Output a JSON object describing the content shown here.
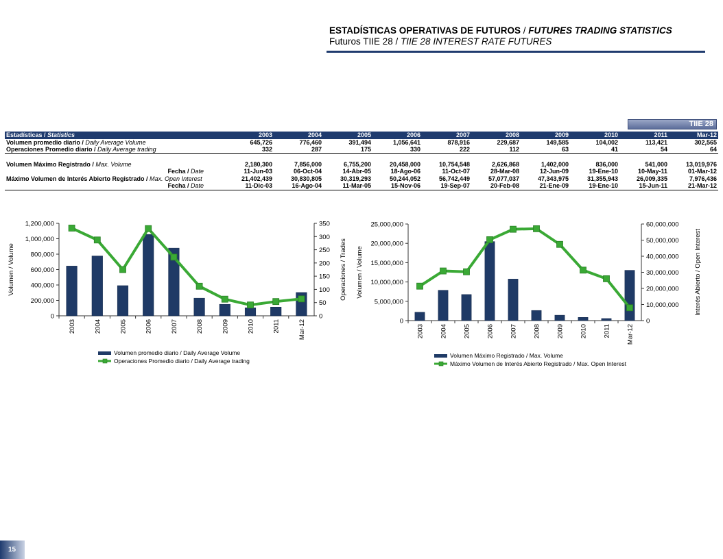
{
  "header": {
    "title_bold": "ESTADÍSTICAS OPERATIVAS DE FUTUROS",
    "title_sep": " / ",
    "title_italic": "FUTURES TRADING STATISTICS",
    "subtitle_normal": "Futuros TIIE 28 / ",
    "subtitle_italic": "TIIE 28 INTEREST RATE FUTURES"
  },
  "tag": "TIIE 28",
  "table": {
    "header_label": "Estadísticas / ",
    "header_label_it": "Statistics",
    "columns": [
      "2003",
      "2004",
      "2005",
      "2006",
      "2007",
      "2008",
      "2009",
      "2010",
      "2011",
      "Mar-12"
    ],
    "rows": [
      {
        "label": "Volumen promedio diario / ",
        "label_it": "Daily Average Volume",
        "values": [
          "645,726",
          "776,460",
          "391,494",
          "1,056,641",
          "878,916",
          "229,687",
          "149,585",
          "104,002",
          "113,421",
          "302,565"
        ]
      },
      {
        "label": "Operaciones Promedio diario / ",
        "label_it": "Daily  Average trading",
        "values": [
          "332",
          "287",
          "175",
          "330",
          "222",
          "112",
          "63",
          "41",
          "54",
          "64"
        ]
      },
      {
        "label": "Volumen Máximo Registrado / ",
        "label_it": "Max. Volume",
        "values": [
          "2,180,300",
          "7,856,000",
          "6,755,200",
          "20,458,000",
          "10,754,548",
          "2,626,868",
          "1,402,000",
          "836,000",
          "541,000",
          "13,019,976"
        ]
      },
      {
        "label": "Fecha / ",
        "label_it": "Date",
        "values": [
          "11-Jun-03",
          "06-Oct-04",
          "14-Abr-05",
          "18-Ago-06",
          "11-Oct-07",
          "28-Mar-08",
          "12-Jun-09",
          "19-Ene-10",
          "10-May-11",
          "01-Mar-12"
        ]
      },
      {
        "label": "Máximo Volumen de Interés Abierto Registrado / ",
        "label_it": "Max. Open Interest",
        "values": [
          "21,402,439",
          "30,830,805",
          "30,319,293",
          "50,244,052",
          "56,742,449",
          "57,077,037",
          "47,343,975",
          "31,355,943",
          "26,009,335",
          "7,976,436"
        ]
      },
      {
        "label": "Fecha / ",
        "label_it": "Date",
        "values": [
          "11-Dic-03",
          "16-Ago-04",
          "11-Mar-05",
          "15-Nov-06",
          "19-Sep-07",
          "20-Feb-08",
          "21-Ene-09",
          "19-Ene-10",
          "15-Jun-11",
          "21-Mar-12"
        ]
      }
    ]
  },
  "page_number": "15",
  "colors": {
    "navy": "#1f3b6e",
    "bar": "#1f3a66",
    "line": "#3aa935"
  },
  "chart_data": [
    {
      "type": "bar+line",
      "categories": [
        "2003",
        "2004",
        "2005",
        "2006",
        "2007",
        "2008",
        "2009",
        "2010",
        "2011",
        "Mar-12"
      ],
      "series": [
        {
          "name": "Volumen promedio diario / Daily Average Volume",
          "type": "bar",
          "axis": "left",
          "values": [
            645726,
            776460,
            391494,
            1056641,
            878916,
            229687,
            149585,
            104002,
            113421,
            302565
          ]
        },
        {
          "name": "Operaciones Promedio diario / Daily Average trading",
          "type": "line",
          "axis": "right",
          "values": [
            332,
            287,
            175,
            330,
            222,
            112,
            63,
            41,
            54,
            64
          ]
        }
      ],
      "ylabel": "Volumen / Volume",
      "y2label": "Operaciones / Trades",
      "ylim": [
        0,
        1200000
      ],
      "y2lim": [
        0,
        350
      ],
      "yticks": [
        "1,200,000",
        "1,000,000",
        "800,000",
        "600,000",
        "400,000",
        "200,000",
        "0"
      ],
      "y2ticks": [
        "350",
        "300",
        "250",
        "200",
        "150",
        "100",
        "50",
        "0"
      ],
      "legend": "bottom"
    },
    {
      "type": "bar+line",
      "categories": [
        "2003",
        "2004",
        "2005",
        "2006",
        "2007",
        "2008",
        "2009",
        "2010",
        "2011",
        "Mar-12"
      ],
      "series": [
        {
          "name": "Volumen Máximo Registrado / Max. Volume",
          "type": "bar",
          "axis": "left",
          "values": [
            2180300,
            7856000,
            6755200,
            20458000,
            10754548,
            2626868,
            1402000,
            836000,
            541000,
            13019976
          ]
        },
        {
          "name": "Máximo Volumen de Interés Abierto Registrado / Max. Open Interest",
          "type": "line",
          "axis": "right",
          "values": [
            21402439,
            30830805,
            30319293,
            50244052,
            56742449,
            57077037,
            47343975,
            31355943,
            26009335,
            7976436
          ]
        }
      ],
      "ylabel": "Volumen / Volume",
      "y2label": "Interés Abierto / Open Interest",
      "ylim": [
        0,
        25000000
      ],
      "y2lim": [
        0,
        60000000
      ],
      "yticks": [
        "25,000,000",
        "20,000,000",
        "15,000,000",
        "10,000,000",
        "5,000,000",
        "0"
      ],
      "y2ticks": [
        "60,000,000",
        "50,000,000",
        "40,000,000",
        "30,000,000",
        "20,000,000",
        "10,000,000",
        "0"
      ],
      "legend": "bottom"
    }
  ]
}
